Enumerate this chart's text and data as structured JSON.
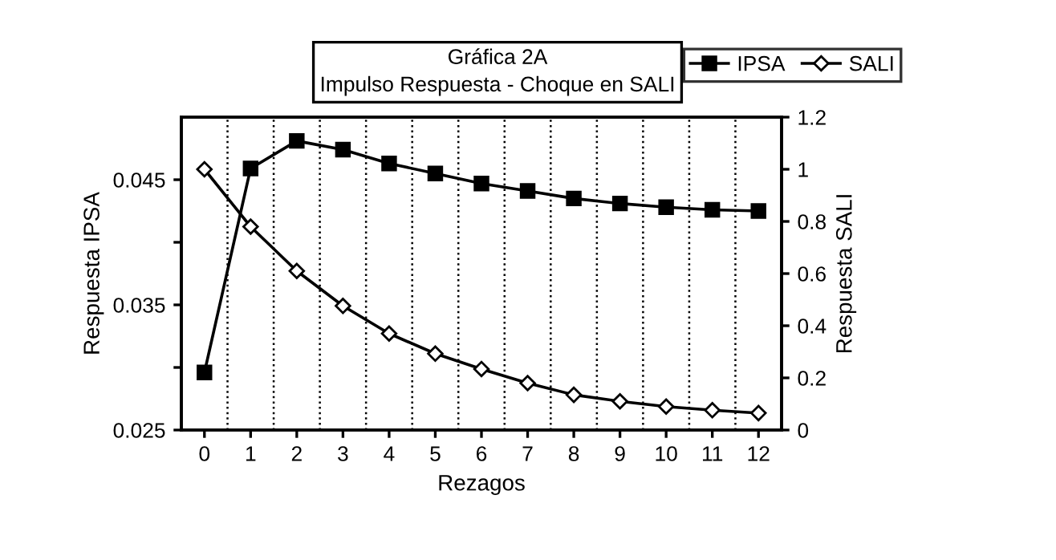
{
  "chart_data": {
    "type": "line",
    "title": "Gráfica 2A",
    "subtitle": "Impulso Respuesta - Choque en SALI",
    "xlabel": "Rezagos",
    "ylabel": "Respuesta IPSA",
    "y2label": "Respuesta SALI",
    "x": [
      0,
      1,
      2,
      3,
      4,
      5,
      6,
      7,
      8,
      9,
      10,
      11,
      12
    ],
    "series": [
      {
        "name": "IPSA",
        "color": "#000000",
        "marker": "square",
        "values": [
          0.0296,
          0.0459,
          0.0481,
          0.0474,
          0.0463,
          0.0455,
          0.0447,
          0.0441,
          0.0435,
          0.0431,
          0.0428,
          0.0426,
          0.0425
        ]
      },
      {
        "name": "SALI",
        "color": "#000000",
        "marker": "diamond",
        "axis": "y2",
        "values": [
          1.0,
          0.78,
          0.61,
          0.476,
          0.37,
          0.293,
          0.234,
          0.18,
          0.135,
          0.11,
          0.09,
          0.076,
          0.065
        ]
      }
    ],
    "xlim": [
      -0.5,
      12.5
    ],
    "xticks": [
      0,
      1,
      2,
      3,
      4,
      5,
      6,
      7,
      8,
      9,
      10,
      11,
      12
    ],
    "ylim": [
      0.025,
      0.05
    ],
    "yticks": [
      0.025,
      {
        "value": 0.03,
        "label": null
      },
      0.035,
      {
        "value": 0.04,
        "label": null
      },
      0.045
    ],
    "y2lim": [
      0,
      1.2
    ],
    "y2ticks": [
      0,
      0.2,
      0.4,
      0.6,
      0.8,
      1,
      1.2
    ],
    "ref_lines": [
      {
        "axis": "x",
        "value": 0.5,
        "line_style": "dotted",
        "color": "#000000"
      },
      {
        "axis": "x",
        "value": 1.5,
        "line_style": "dotted",
        "color": "#000000"
      },
      {
        "axis": "x",
        "value": 2.5,
        "line_style": "dotted",
        "color": "#000000"
      },
      {
        "axis": "x",
        "value": 3.5,
        "line_style": "dotted",
        "color": "#000000"
      },
      {
        "axis": "x",
        "value": 4.5,
        "line_style": "dotted",
        "color": "#000000"
      },
      {
        "axis": "x",
        "value": 5.5,
        "line_style": "dotted",
        "color": "#000000"
      },
      {
        "axis": "x",
        "value": 6.5,
        "line_style": "dotted",
        "color": "#000000"
      },
      {
        "axis": "x",
        "value": 7.5,
        "line_style": "dotted",
        "color": "#000000"
      },
      {
        "axis": "x",
        "value": 8.5,
        "line_style": "dotted",
        "color": "#000000"
      },
      {
        "axis": "x",
        "value": 9.5,
        "line_style": "dotted",
        "color": "#000000"
      },
      {
        "axis": "x",
        "value": 10.5,
        "line_style": "dotted",
        "color": "#000000"
      },
      {
        "axis": "x",
        "value": 11.5,
        "line_style": "dotted",
        "color": "#000000"
      }
    ],
    "legend": "top right",
    "grid": false,
    "line_style": "solid"
  }
}
